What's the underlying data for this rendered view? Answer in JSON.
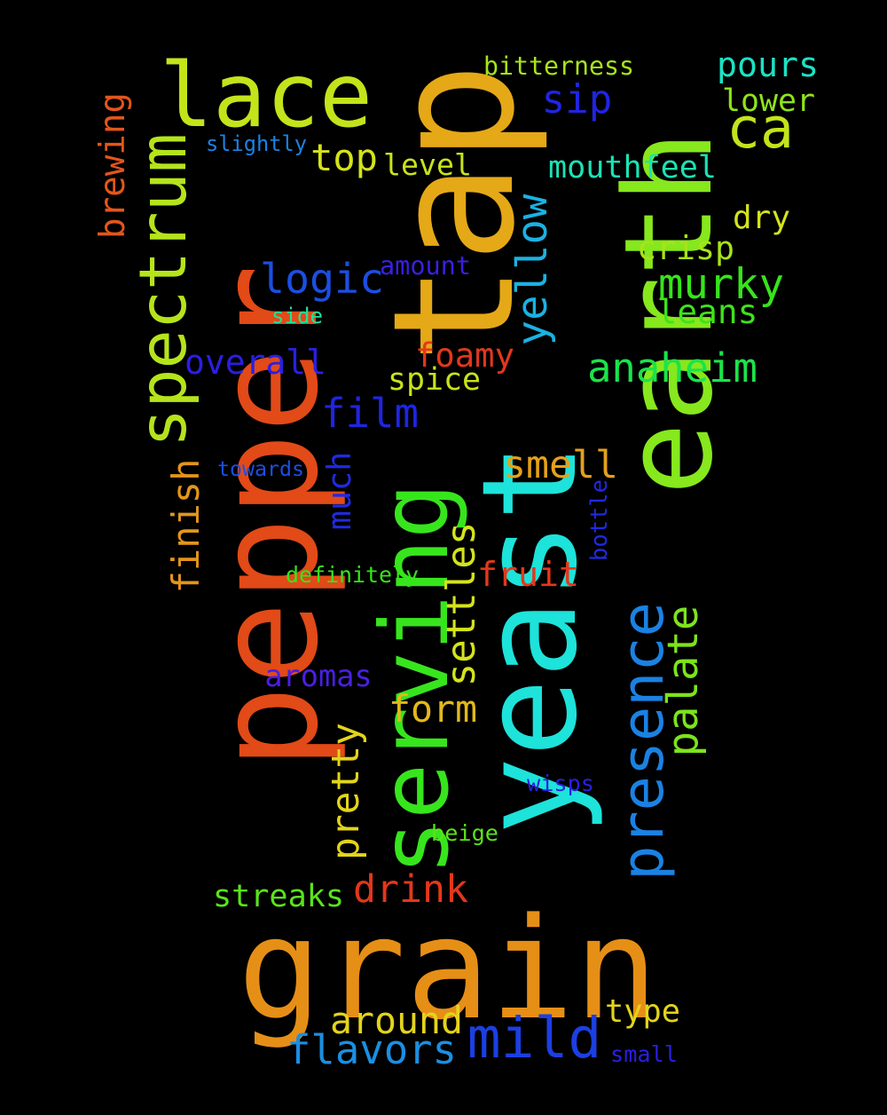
{
  "words": [
    {
      "text": "pepper",
      "color": "#e24a17",
      "vertical": true
    },
    {
      "text": "yeast",
      "color": "#1de3da",
      "vertical": true
    },
    {
      "text": "earth",
      "color": "#86e81d",
      "vertical": true
    },
    {
      "text": "grain",
      "color": "#e68f17",
      "vertical": false
    },
    {
      "text": "tap",
      "color": "#e5a817",
      "vertical": true
    },
    {
      "text": "serving",
      "color": "#37e51d",
      "vertical": true
    },
    {
      "text": "lace",
      "color": "#c3e41b",
      "vertical": false
    },
    {
      "text": "spectrum",
      "color": "#b5e41b",
      "vertical": true
    },
    {
      "text": "presence",
      "color": "#1a82e3",
      "vertical": true
    },
    {
      "text": "yellow",
      "color": "#1ab2e3",
      "vertical": true
    },
    {
      "text": "ca",
      "color": "#c3e41b",
      "vertical": false
    },
    {
      "text": "mild",
      "color": "#1c3fe3",
      "vertical": false
    },
    {
      "text": "palate",
      "color": "#7ce41b",
      "vertical": true
    },
    {
      "text": "logic",
      "color": "#1b4fe3",
      "vertical": false
    },
    {
      "text": "murky",
      "color": "#37e41b",
      "vertical": false
    },
    {
      "text": "anaheim",
      "color": "#1be34a",
      "vertical": false
    },
    {
      "text": "film",
      "color": "#1f25e3",
      "vertical": false
    },
    {
      "text": "flavors",
      "color": "#1b8fe3",
      "vertical": false
    },
    {
      "text": "around",
      "color": "#e3d41b",
      "vertical": false
    },
    {
      "text": "drink",
      "color": "#e3371b",
      "vertical": false
    },
    {
      "text": "settles",
      "color": "#d4e31b",
      "vertical": true
    },
    {
      "text": "pretty",
      "color": "#e3d41b",
      "vertical": true
    },
    {
      "text": "form",
      "color": "#e3b81b",
      "vertical": false
    },
    {
      "text": "smell",
      "color": "#e3a21b",
      "vertical": false
    },
    {
      "text": "fruit",
      "color": "#e3371b",
      "vertical": false
    },
    {
      "text": "much",
      "color": "#1f2ae3",
      "vertical": true
    },
    {
      "text": "overall",
      "color": "#2a1fe3",
      "vertical": false
    },
    {
      "text": "finish",
      "color": "#e3951b",
      "vertical": true
    },
    {
      "text": "streaks",
      "color": "#5ae31b",
      "vertical": false
    },
    {
      "text": "foamy",
      "color": "#e3371b",
      "vertical": false
    },
    {
      "text": "spice",
      "color": "#c8e31b",
      "vertical": false
    },
    {
      "text": "top",
      "color": "#d4e31b",
      "vertical": false
    },
    {
      "text": "pours",
      "color": "#1be3c3",
      "vertical": false
    },
    {
      "text": "sip",
      "color": "#1f25e3",
      "vertical": false
    },
    {
      "text": "mouthfeel",
      "color": "#1be3b5",
      "vertical": false
    },
    {
      "text": "crisp",
      "color": "#a8e31b",
      "vertical": false
    },
    {
      "text": "leans",
      "color": "#3ee31b",
      "vertical": false
    },
    {
      "text": "aromas",
      "color": "#4a1fe3",
      "vertical": false
    },
    {
      "text": "level",
      "color": "#c8e31b",
      "vertical": false
    },
    {
      "text": "dry",
      "color": "#d4e31b",
      "vertical": false
    },
    {
      "text": "lower",
      "color": "#8fe31b",
      "vertical": false
    },
    {
      "text": "type",
      "color": "#e3d41b",
      "vertical": false
    },
    {
      "text": "brewing",
      "color": "#e3561b",
      "vertical": true
    },
    {
      "text": "bitterness",
      "color": "#a8e31b",
      "vertical": false
    },
    {
      "text": "amount",
      "color": "#3a1fe3",
      "vertical": false
    },
    {
      "text": "slightly",
      "color": "#1b82e3",
      "vertical": false
    },
    {
      "text": "towards",
      "color": "#1b4fe3",
      "vertical": false
    },
    {
      "text": "definitely",
      "color": "#37e41b",
      "vertical": false
    },
    {
      "text": "side",
      "color": "#1be39a",
      "vertical": false
    },
    {
      "text": "wisps",
      "color": "#2a1fe3",
      "vertical": false
    },
    {
      "text": "beige",
      "color": "#5ae31b",
      "vertical": false
    },
    {
      "text": "bottle",
      "color": "#1f2ae3",
      "vertical": true
    },
    {
      "text": "small",
      "color": "#2a1fe3",
      "vertical": false
    }
  ]
}
